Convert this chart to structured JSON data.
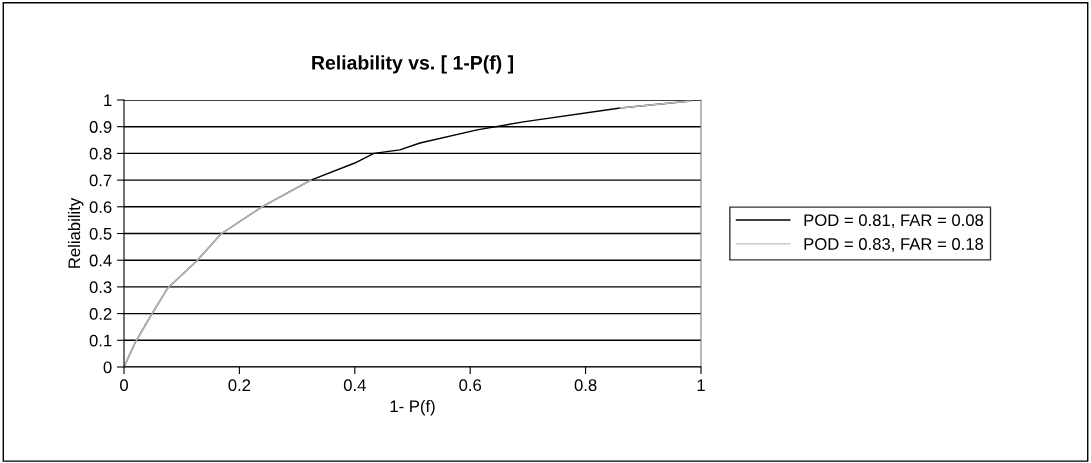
{
  "chart_data": {
    "type": "line",
    "title": "Reliability vs. [ 1-P(f) ]",
    "xlabel": "1- P(f)",
    "ylabel": "Reliability",
    "xlim": [
      0,
      1
    ],
    "ylim": [
      0,
      1
    ],
    "xticks": [
      0,
      0.2,
      0.4,
      0.6,
      0.8,
      1
    ],
    "yticks": [
      0,
      0.1,
      0.2,
      0.3,
      0.4,
      0.5,
      0.6,
      0.7,
      0.8,
      0.9,
      1
    ],
    "grid": "y",
    "legend": "right",
    "marker": "none",
    "line_style": "solid",
    "series": [
      {
        "name": "POD = 0.81, FAR = 0.08",
        "color": "#000000",
        "x": [
          0,
          0.019,
          0.045,
          0.076,
          0.126,
          0.168,
          0.239,
          0.324,
          0.4,
          0.433,
          0.478,
          0.513,
          0.612,
          0.692,
          0.86,
          0.981
        ],
        "values": [
          0,
          0.09,
          0.187,
          0.296,
          0.397,
          0.498,
          0.6,
          0.7,
          0.764,
          0.8,
          0.813,
          0.839,
          0.888,
          0.918,
          0.97,
          0.996
        ]
      },
      {
        "name": "POD = 0.83, FAR = 0.18",
        "color": "#c0c0c0",
        "x": [
          0,
          0.019,
          0.045,
          0.076,
          0.126,
          0.168,
          0.239,
          0.324,
          0.4,
          0.433,
          0.478,
          0.513,
          0.612,
          0.692,
          0.86,
          0.981
        ],
        "values": [
          0,
          0.09,
          0.187,
          0.296,
          0.397,
          0.498,
          0.6,
          0.7,
          null,
          null,
          null,
          null,
          null,
          null,
          0.97,
          0.996
        ]
      }
    ]
  }
}
